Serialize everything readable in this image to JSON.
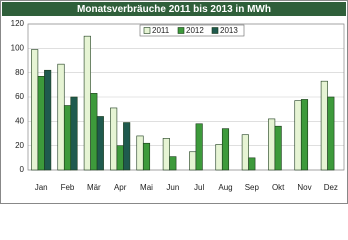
{
  "chart_data": {
    "type": "bar",
    "title": "Monatsverbräuche 2011 bis 2013 in MWh",
    "categories": [
      "Jan",
      "Feb",
      "Mär",
      "Apr",
      "Mai",
      "Jun",
      "Jul",
      "Aug",
      "Sep",
      "Okt",
      "Nov",
      "Dez"
    ],
    "series": [
      {
        "name": "2011",
        "color": "#e6f4d4",
        "values": [
          99,
          87,
          110,
          51,
          28,
          26,
          15,
          21,
          29,
          42,
          57,
          73
        ]
      },
      {
        "name": "2012",
        "color": "#3d9a3b",
        "values": [
          77,
          53,
          63,
          20,
          22,
          11,
          38,
          34,
          10,
          36,
          58,
          60
        ]
      },
      {
        "name": "2013",
        "color": "#1f5a4e",
        "values": [
          82,
          60,
          44,
          39,
          null,
          null,
          null,
          null,
          null,
          null,
          null,
          null
        ]
      }
    ],
    "ylim": [
      0,
      120
    ],
    "yticks": [
      0,
      20,
      40,
      60,
      80,
      100,
      120
    ],
    "grid": true
  }
}
